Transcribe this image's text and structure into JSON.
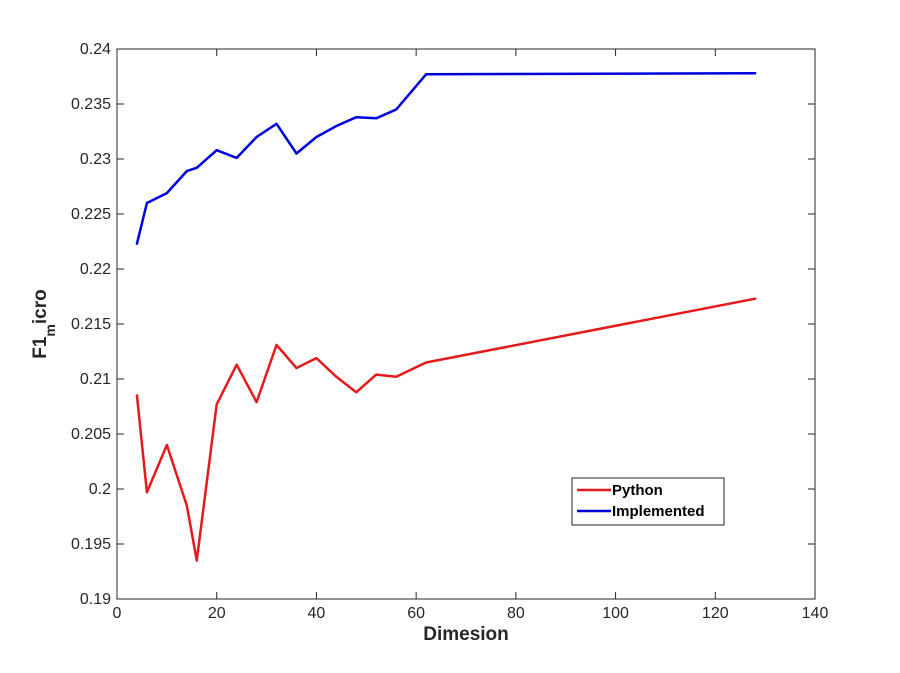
{
  "chart_data": {
    "type": "line",
    "title": "",
    "xlabel": "Dimesion",
    "ylabel": {
      "base": "F1",
      "sub": "m",
      "rest": "icro"
    },
    "xlim": [
      0,
      140
    ],
    "ylim": [
      0.19,
      0.24
    ],
    "xticks": [
      0,
      20,
      40,
      60,
      80,
      100,
      120,
      140
    ],
    "yticks": [
      0.19,
      0.195,
      0.2,
      0.205,
      0.21,
      0.215,
      0.22,
      0.225,
      0.23,
      0.235,
      0.24
    ],
    "ytick_labels": [
      "0.19",
      "0.195",
      "0.2",
      "0.205",
      "0.21",
      "0.215",
      "0.22",
      "0.225",
      "0.23",
      "0.235",
      "0.24"
    ],
    "grid": false,
    "legend_position": "lower-right",
    "series": [
      {
        "name": "Python",
        "color": "#e41a1c",
        "x": [
          4,
          6,
          10,
          14,
          16,
          20,
          24,
          28,
          32,
          36,
          40,
          44,
          48,
          52,
          56,
          62,
          128
        ],
        "y": [
          0.2085,
          0.1997,
          0.204,
          0.1985,
          0.1935,
          0.2077,
          0.2113,
          0.2079,
          0.2131,
          0.211,
          0.2119,
          0.2102,
          0.2088,
          0.2104,
          0.2102,
          0.2115,
          0.2173
        ]
      },
      {
        "name": "Implemented",
        "color": "#0000dd",
        "x": [
          4,
          6,
          10,
          14,
          16,
          20,
          24,
          28,
          32,
          36,
          40,
          44,
          48,
          52,
          56,
          62,
          128
        ],
        "y": [
          0.2223,
          0.226,
          0.2269,
          0.2289,
          0.2292,
          0.2308,
          0.2301,
          0.232,
          0.2332,
          0.2305,
          0.232,
          0.233,
          0.2338,
          0.2337,
          0.2345,
          0.2377,
          0.2378
        ]
      }
    ]
  }
}
